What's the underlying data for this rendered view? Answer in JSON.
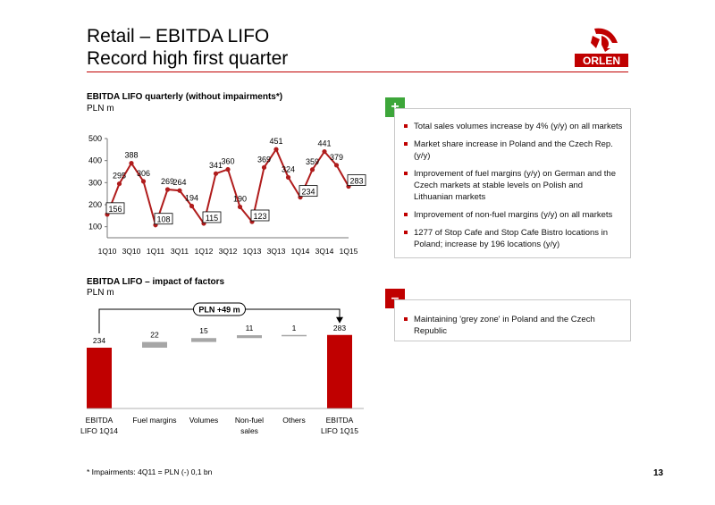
{
  "slide": {
    "title_line1": "Retail – EBITDA LIFO",
    "title_line2": "Record high first quarter",
    "logo_text": "ORLEN",
    "page_number": "13",
    "footnote": "* Impairments: 4Q11 = PLN (-) 0,1 bn"
  },
  "colors": {
    "accent": "#c00000",
    "line": "#b01c1c",
    "plus": "#3da63a",
    "bar_grey": "#a6a6a6"
  },
  "positives": {
    "badge": "+",
    "items": [
      "Total sales volumes increase by 4% (y/y) on all markets",
      "Market share increase in Poland and the Czech Rep. (y/y)",
      "Improvement of fuel margins (y/y) on German and the Czech markets at stable levels on Polish and Lithuanian markets",
      "Improvement of non-fuel margins (y/y) on all markets",
      "1277 of Stop Cafe and Stop Cafe Bistro locations in Poland; increase by 196 locations (y/y)"
    ]
  },
  "negatives": {
    "badge": "–",
    "items": [
      "Maintaining 'grey zone' in Poland and the Czech Republic"
    ]
  },
  "chart_data": [
    {
      "type": "line",
      "title": "EBITDA LIFO quarterly (without impairments*)",
      "unit": "PLN m",
      "x": [
        "1Q10",
        "2Q10",
        "3Q10",
        "4Q10",
        "1Q11",
        "2Q11",
        "3Q11",
        "4Q11",
        "1Q12",
        "2Q12",
        "3Q12",
        "4Q12",
        "1Q13",
        "2Q13",
        "3Q13",
        "4Q13",
        "1Q14",
        "2Q14",
        "3Q14",
        "4Q14",
        "1Q15"
      ],
      "x_tick_labels": [
        "1Q10",
        "3Q10",
        "1Q11",
        "3Q11",
        "1Q12",
        "3Q12",
        "1Q13",
        "3Q13",
        "1Q14",
        "3Q14",
        "1Q15"
      ],
      "values": [
        156,
        295,
        388,
        306,
        108,
        269,
        264,
        194,
        115,
        341,
        360,
        190,
        123,
        369,
        451,
        324,
        234,
        359,
        441,
        379,
        283
      ],
      "boxed_labels": [
        0,
        4,
        8,
        12,
        16,
        20
      ],
      "yticks": [
        100,
        200,
        300,
        400,
        500
      ],
      "ylim": [
        50,
        500
      ],
      "grid": false
    },
    {
      "type": "bar",
      "subtype": "waterfall",
      "title": "EBITDA LIFO – impact of factors",
      "unit": "PLN m",
      "annotation": "PLN +49 m",
      "categories": [
        {
          "line1": "EBITDA",
          "line2": "LIFO 1Q14"
        },
        {
          "line1": "Fuel margins",
          "line2": ""
        },
        {
          "line1": "Volumes",
          "line2": ""
        },
        {
          "line1": "Non-fuel",
          "line2": "sales"
        },
        {
          "line1": "Others",
          "line2": ""
        },
        {
          "line1": "EBITDA",
          "line2": "LIFO 1Q15"
        }
      ],
      "values": [
        234,
        22,
        15,
        11,
        1,
        283
      ],
      "kinds": [
        "total",
        "delta",
        "delta",
        "delta",
        "delta",
        "total"
      ],
      "value_labels": [
        "234",
        "22",
        "15",
        "11",
        "1",
        "283"
      ]
    }
  ]
}
